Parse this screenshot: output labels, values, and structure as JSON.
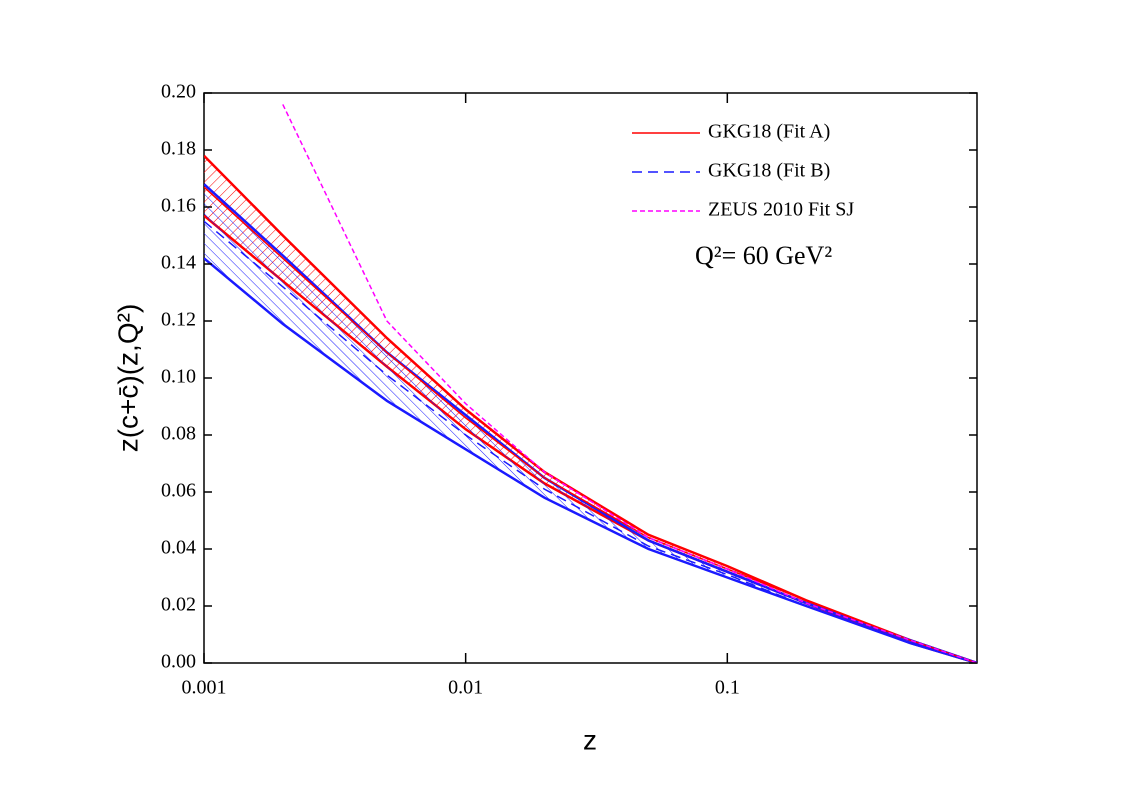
{
  "chart_data": {
    "type": "line",
    "x_label": "z",
    "y_label": "z(c+c̄)(z,Q²)",
    "annotation": "Q²= 60 GeV²",
    "x": [
      0.001,
      0.002,
      0.005,
      0.01,
      0.02,
      0.05,
      0.1,
      0.2,
      0.5,
      0.9
    ],
    "xlim": [
      0.001,
      0.9
    ],
    "x_log": true,
    "xticks": [
      0.001,
      0.01,
      0.1
    ],
    "ylim": [
      0,
      0.2
    ],
    "yticks": [
      {
        "value": 0,
        "label": "0.00"
      },
      0.02,
      0.04,
      0.06,
      0.08,
      {
        "value": 0.1,
        "label": "0.10"
      },
      0.12,
      0.14,
      0.16,
      0.18,
      {
        "value": 0.2,
        "label": "0.20"
      }
    ],
    "grid": false,
    "legend": "upper right",
    "series": [
      {
        "name": "GKG18 (Fit A)",
        "color": "#ff0000",
        "line_style": "solid",
        "values": [
          0.167,
          0.142,
          0.109,
          0.086,
          0.065,
          0.044,
          0.033,
          0.022,
          0.008,
          0
        ],
        "upper": [
          0.178,
          0.15,
          0.114,
          0.089,
          0.067,
          0.045,
          0.034,
          0.022,
          0.008,
          0
        ],
        "lower": [
          0.157,
          0.134,
          0.104,
          0.082,
          0.063,
          0.043,
          0.032,
          0.021,
          0.007,
          0
        ]
      },
      {
        "name": "GKG18 (Fit B)",
        "color": "#1a1aff",
        "line_style": "dashed",
        "values": [
          0.155,
          0.132,
          0.101,
          0.08,
          0.061,
          0.041,
          0.031,
          0.02,
          0.007,
          0
        ],
        "upper": [
          0.168,
          0.143,
          0.109,
          0.087,
          0.065,
          0.043,
          0.032,
          0.021,
          0.008,
          0
        ],
        "lower": [
          0.142,
          0.119,
          0.092,
          0.075,
          0.058,
          0.04,
          0.03,
          0.02,
          0.007,
          0
        ]
      },
      {
        "name": "ZEUS 2010 Fit SJ",
        "color": "#ff00ff",
        "line_style": "dotted",
        "values": [
          null,
          0.196,
          0.12,
          0.091,
          0.067,
          0.044,
          0.033,
          0.021,
          0.008,
          0
        ]
      }
    ]
  }
}
